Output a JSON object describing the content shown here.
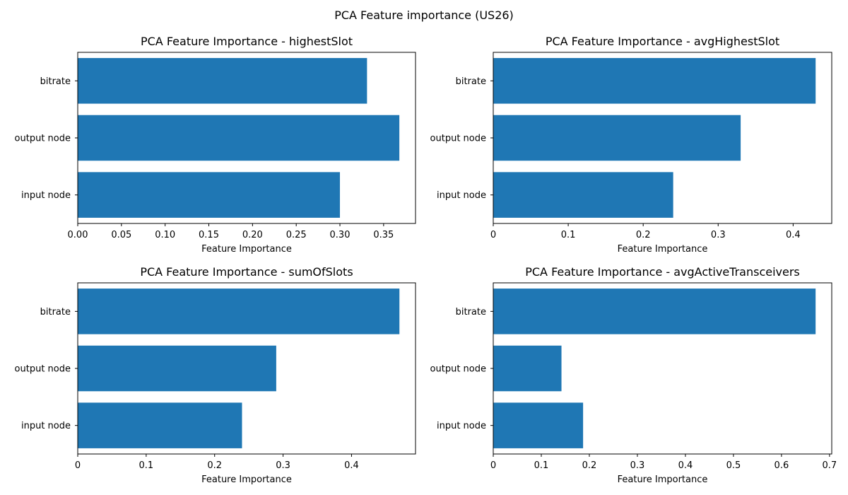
{
  "figure": {
    "suptitle": "PCA Feature importance (US26)",
    "bar_color": "#1f77b4"
  },
  "chart_data": [
    {
      "type": "bar",
      "orientation": "horizontal",
      "title": "PCA Feature Importance - highestSlot",
      "xlabel": "Feature Importance",
      "ylabel": "",
      "categories": [
        "bitrate",
        "output node",
        "input node"
      ],
      "values": [
        0.331,
        0.368,
        0.3
      ],
      "xlim": [
        0,
        0.3865
      ],
      "xticks": [
        0,
        0.05,
        0.1,
        0.15,
        0.2,
        0.25,
        0.3,
        0.35
      ],
      "xtick_labels": [
        "0.00",
        "0.05",
        "0.10",
        "0.15",
        "0.20",
        "0.25",
        "0.30",
        "0.35"
      ],
      "grid": false,
      "legend": "none"
    },
    {
      "type": "bar",
      "orientation": "horizontal",
      "title": "PCA Feature Importance - avgHighestSlot",
      "xlabel": "Feature Importance",
      "ylabel": "",
      "categories": [
        "bitrate",
        "output node",
        "input node"
      ],
      "values": [
        0.43,
        0.33,
        0.24
      ],
      "xlim": [
        0,
        0.4515
      ],
      "xticks": [
        0,
        0.1,
        0.2,
        0.3,
        0.4
      ],
      "xtick_labels": [
        "0",
        "0.1",
        "0.2",
        "0.3",
        "0.4"
      ],
      "grid": false,
      "legend": "none"
    },
    {
      "type": "bar",
      "orientation": "horizontal",
      "title": "PCA Feature Importance - sumOfSlots",
      "xlabel": "Feature Importance",
      "ylabel": "",
      "categories": [
        "bitrate",
        "output node",
        "input node"
      ],
      "values": [
        0.47,
        0.29,
        0.24
      ],
      "xlim": [
        0,
        0.4935
      ],
      "xticks": [
        0,
        0.1,
        0.2,
        0.3,
        0.4
      ],
      "xtick_labels": [
        "0",
        "0.1",
        "0.2",
        "0.3",
        "0.4"
      ],
      "grid": false,
      "legend": "none"
    },
    {
      "type": "bar",
      "orientation": "horizontal",
      "title": "PCA Feature Importance - avgActiveTransceivers",
      "xlabel": "Feature Importance",
      "ylabel": "",
      "categories": [
        "bitrate",
        "output node",
        "input node"
      ],
      "values": [
        0.671,
        0.142,
        0.187
      ],
      "xlim": [
        0,
        0.7046
      ],
      "xticks": [
        0,
        0.1,
        0.2,
        0.3,
        0.4,
        0.5,
        0.6,
        0.7
      ],
      "xtick_labels": [
        "0",
        "0.1",
        "0.2",
        "0.3",
        "0.4",
        "0.5",
        "0.6",
        "0.7"
      ],
      "grid": false,
      "legend": "none"
    }
  ]
}
